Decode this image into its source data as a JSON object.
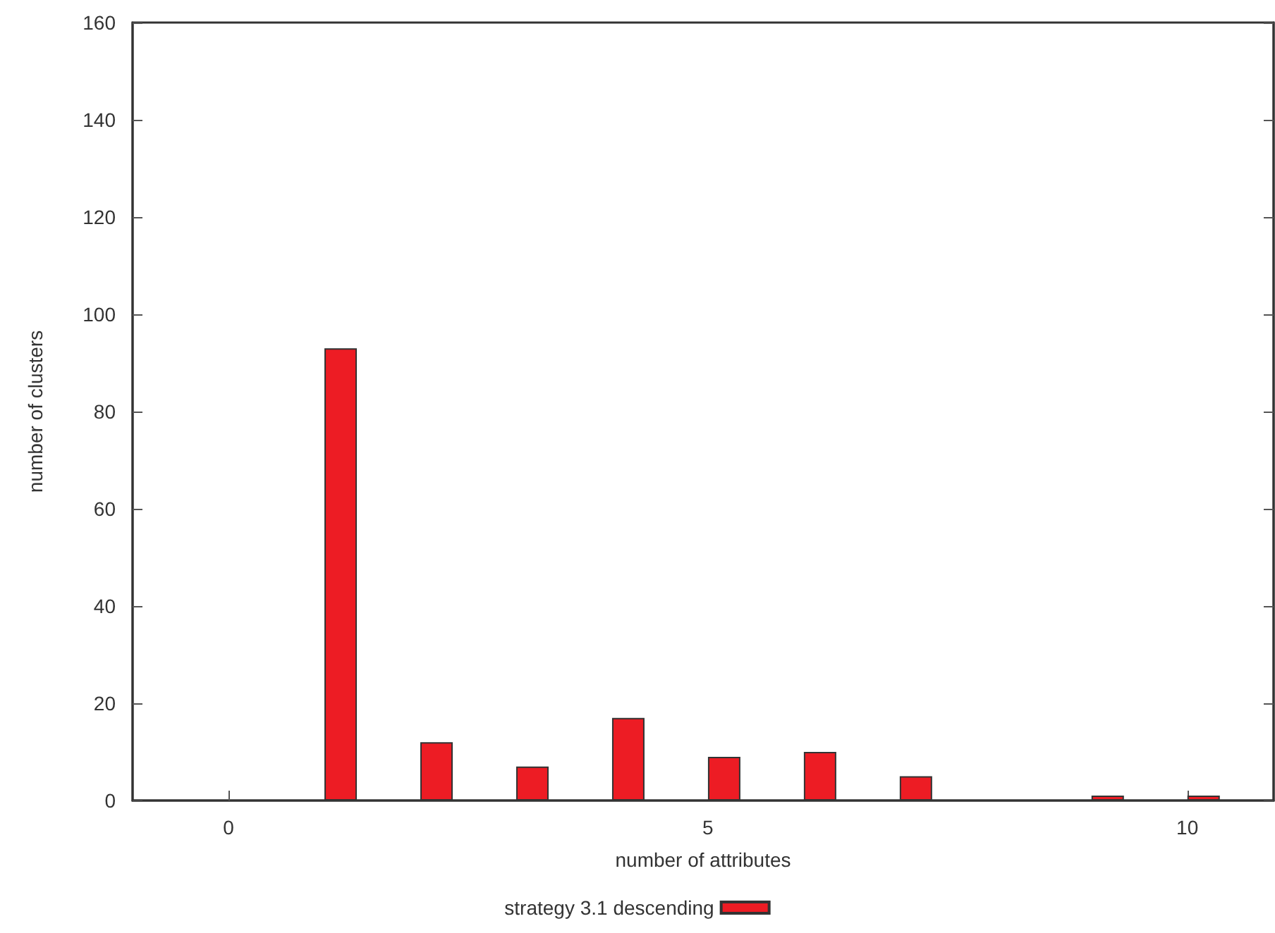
{
  "chart_data": {
    "type": "bar",
    "xlabel": "number of attributes",
    "ylabel": "number of clusters",
    "x": [
      0.17,
      1.17,
      2.17,
      3.17,
      4.17,
      5.17,
      6.17,
      7.17,
      8.17,
      9.17,
      10.17
    ],
    "series": [
      {
        "name": "strategy 3.1 descending",
        "color": "#ed1c24",
        "values": [
          0,
          93,
          12,
          7,
          17,
          9,
          10,
          5,
          0,
          1,
          1
        ]
      }
    ],
    "xlim": [
      -1,
      10.9
    ],
    "xticks": [
      0,
      5,
      10
    ],
    "ylim": [
      0,
      160
    ],
    "yticks": [
      0,
      20,
      40,
      60,
      80,
      100,
      120,
      140,
      160
    ],
    "grid": false,
    "legend": "bottom"
  }
}
